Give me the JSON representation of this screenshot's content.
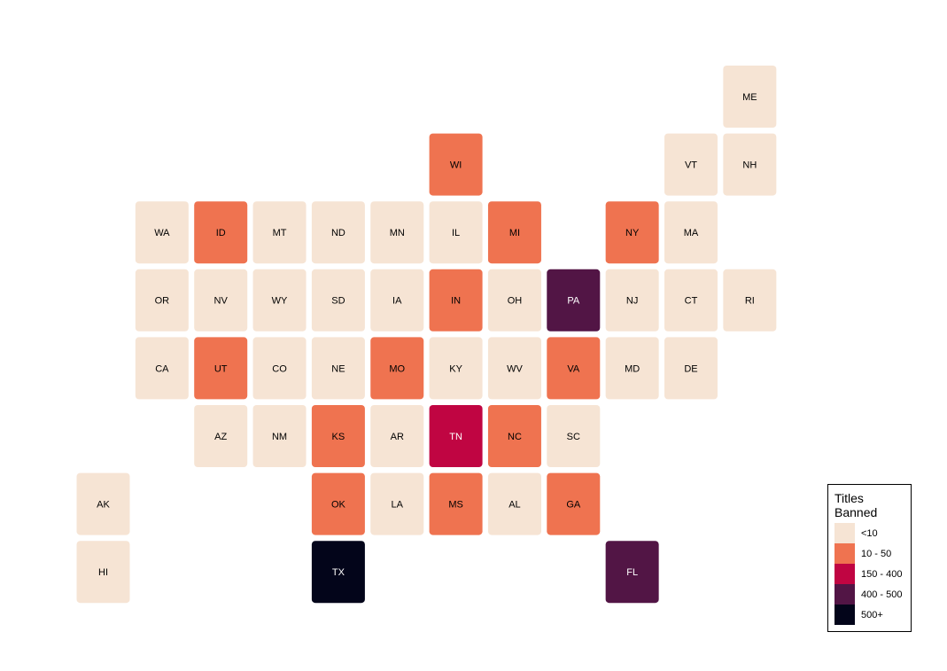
{
  "legend": {
    "title": "Titles\nBanned",
    "items": [
      {
        "label": "<10",
        "color": "#f6e4d4"
      },
      {
        "label": "10 - 50",
        "color": "#ef7350"
      },
      {
        "label": "150 - 400",
        "color": "#c00542"
      },
      {
        "label": "400 - 500",
        "color": "#521545"
      },
      {
        "label": "500+",
        "color": "#03051a"
      }
    ]
  },
  "states": [
    {
      "label": "ME",
      "group": "<10"
    },
    {
      "label": "WI",
      "group": "10 - 50"
    },
    {
      "label": "VT",
      "group": "<10"
    },
    {
      "label": "NH",
      "group": "<10"
    },
    {
      "label": "WA",
      "group": "<10"
    },
    {
      "label": "ID",
      "group": "10 - 50"
    },
    {
      "label": "MT",
      "group": "<10"
    },
    {
      "label": "ND",
      "group": "<10"
    },
    {
      "label": "MN",
      "group": "<10"
    },
    {
      "label": "IL",
      "group": "<10"
    },
    {
      "label": "MI",
      "group": "10 - 50"
    },
    {
      "label": "NY",
      "group": "10 - 50"
    },
    {
      "label": "MA",
      "group": "<10"
    },
    {
      "label": "OR",
      "group": "<10"
    },
    {
      "label": "NV",
      "group": "<10"
    },
    {
      "label": "WY",
      "group": "<10"
    },
    {
      "label": "SD",
      "group": "<10"
    },
    {
      "label": "IA",
      "group": "<10"
    },
    {
      "label": "IN",
      "group": "10 - 50"
    },
    {
      "label": "OH",
      "group": "<10"
    },
    {
      "label": "PA",
      "group": "400 - 500"
    },
    {
      "label": "NJ",
      "group": "<10"
    },
    {
      "label": "CT",
      "group": "<10"
    },
    {
      "label": "RI",
      "group": "<10"
    },
    {
      "label": "CA",
      "group": "<10"
    },
    {
      "label": "UT",
      "group": "10 - 50"
    },
    {
      "label": "CO",
      "group": "<10"
    },
    {
      "label": "NE",
      "group": "<10"
    },
    {
      "label": "MO",
      "group": "10 - 50"
    },
    {
      "label": "KY",
      "group": "<10"
    },
    {
      "label": "WV",
      "group": "<10"
    },
    {
      "label": "VA",
      "group": "10 - 50"
    },
    {
      "label": "MD",
      "group": "<10"
    },
    {
      "label": "DE",
      "group": "<10"
    },
    {
      "label": "AZ",
      "group": "<10"
    },
    {
      "label": "NM",
      "group": "<10"
    },
    {
      "label": "KS",
      "group": "10 - 50"
    },
    {
      "label": "AR",
      "group": "<10"
    },
    {
      "label": "TN",
      "group": "150 - 400"
    },
    {
      "label": "NC",
      "group": "10 - 50"
    },
    {
      "label": "SC",
      "group": "<10"
    },
    {
      "label": "AK",
      "group": "<10"
    },
    {
      "label": "OK",
      "group": "10 - 50"
    },
    {
      "label": "LA",
      "group": "<10"
    },
    {
      "label": "MS",
      "group": "10 - 50"
    },
    {
      "label": "AL",
      "group": "<10"
    },
    {
      "label": "GA",
      "group": "10 - 50"
    },
    {
      "label": "HI",
      "group": "<10"
    },
    {
      "label": "TX",
      "group": "500+"
    },
    {
      "label": "FL",
      "group": "400 - 500"
    }
  ]
}
